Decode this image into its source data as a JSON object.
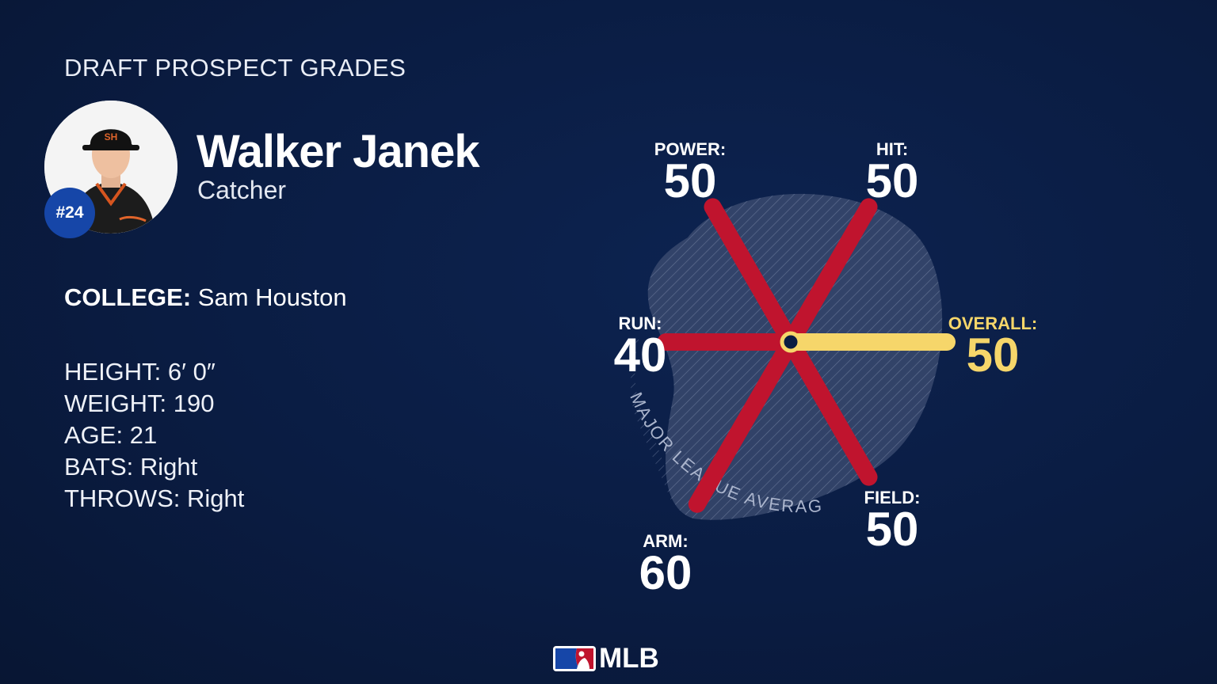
{
  "header": {
    "title": "DRAFT PROSPECT GRADES"
  },
  "player": {
    "name": "Walker Janek",
    "position": "Catcher",
    "number": "#24"
  },
  "college": {
    "label": "COLLEGE:",
    "value": "Sam Houston"
  },
  "bio": [
    {
      "label": "HEIGHT:",
      "value": "6′ 0″"
    },
    {
      "label": "WEIGHT:",
      "value": "190"
    },
    {
      "label": "AGE:",
      "value": "21"
    },
    {
      "label": "BATS:",
      "value": "Right"
    },
    {
      "label": "THROWS:",
      "value": "Right"
    }
  ],
  "colors": {
    "background": "#0a1c42",
    "tool_spoke": "#c0142e",
    "overall_spoke": "#f6d66a",
    "average_region": "#4a5a7c"
  },
  "chart_data": {
    "type": "radar",
    "scale": [
      20,
      80
    ],
    "average_label": "MAJOR LEAGUE AVERAGE",
    "axes": [
      {
        "key": "power",
        "label": "POWER:",
        "value": 50
      },
      {
        "key": "hit",
        "label": "HIT:",
        "value": 50
      },
      {
        "key": "overall",
        "label": "OVERALL:",
        "value": 50,
        "highlight": true
      },
      {
        "key": "field",
        "label": "FIELD:",
        "value": 50
      },
      {
        "key": "arm",
        "label": "ARM:",
        "value": 60
      },
      {
        "key": "run",
        "label": "RUN:",
        "value": 40
      }
    ]
  },
  "footer": {
    "logo_text": "MLB"
  }
}
